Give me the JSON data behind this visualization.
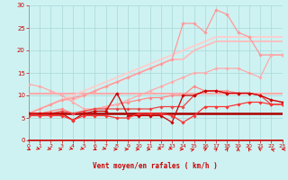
{
  "xlabel": "Vent moyen/en rafales ( km/h )",
  "xlim": [
    0,
    23
  ],
  "ylim": [
    0,
    30
  ],
  "yticks": [
    0,
    5,
    10,
    15,
    20,
    25,
    30
  ],
  "xticks": [
    0,
    1,
    2,
    3,
    4,
    5,
    6,
    7,
    8,
    9,
    10,
    11,
    12,
    13,
    14,
    15,
    16,
    17,
    18,
    19,
    20,
    21,
    22,
    23
  ],
  "bg_color": "#cef2f2",
  "grid_color": "#a8d8d8",
  "lines": [
    {
      "x": [
        0,
        23
      ],
      "y": [
        6.0,
        6.0
      ],
      "color": "#aa0000",
      "lw": 1.8,
      "marker": null,
      "ms": 0
    },
    {
      "x": [
        0,
        23
      ],
      "y": [
        10.5,
        10.5
      ],
      "color": "#ffaaaa",
      "lw": 1.5,
      "marker": null,
      "ms": 0
    },
    {
      "x": [
        0,
        1,
        2,
        3,
        4,
        5,
        6,
        7,
        8,
        9,
        10,
        11,
        12,
        13,
        14,
        15,
        16,
        17,
        18,
        19,
        20,
        21,
        22,
        23
      ],
      "y": [
        6,
        7,
        8,
        9,
        10,
        11,
        12,
        13,
        14,
        15,
        16,
        17,
        18,
        19,
        20,
        21,
        22,
        23,
        23,
        23,
        23,
        23,
        23,
        23
      ],
      "color": "#ffcccc",
      "lw": 1.3,
      "marker": null,
      "ms": 0
    },
    {
      "x": [
        0,
        1,
        2,
        3,
        4,
        5,
        6,
        7,
        8,
        9,
        10,
        11,
        12,
        13,
        14,
        15,
        16,
        17,
        18,
        19,
        20,
        21,
        22,
        23
      ],
      "y": [
        6,
        7,
        8,
        9,
        9,
        10,
        11,
        12,
        13,
        14,
        15,
        16,
        17,
        18,
        18,
        20,
        21,
        22,
        22,
        22,
        22,
        22,
        22,
        22
      ],
      "color": "#ffbbbb",
      "lw": 1.3,
      "marker": null,
      "ms": 0
    },
    {
      "x": [
        0,
        1,
        2,
        3,
        4,
        5,
        6,
        7,
        8,
        9,
        10,
        11,
        12,
        13,
        14,
        15,
        16,
        17,
        18,
        19,
        20,
        21,
        22,
        23
      ],
      "y": [
        6,
        7,
        8,
        9,
        9.5,
        10,
        11,
        12,
        13,
        14,
        15,
        16,
        17,
        18,
        26,
        26,
        24,
        29,
        28,
        24,
        23,
        19,
        19,
        19
      ],
      "color": "#ff9999",
      "lw": 0.9,
      "marker": "D",
      "ms": 1.8
    },
    {
      "x": [
        0,
        1,
        2,
        3,
        4,
        5,
        6,
        7,
        8,
        9,
        10,
        11,
        12,
        13,
        14,
        15,
        16,
        17,
        18,
        19,
        20,
        21,
        22,
        23
      ],
      "y": [
        6,
        6,
        6.5,
        7,
        6,
        6.5,
        7,
        7.5,
        8,
        8.5,
        9,
        9.5,
        9.5,
        10,
        10,
        12,
        11,
        11,
        11,
        10.5,
        10.5,
        10,
        9,
        8.5
      ],
      "color": "#ff8888",
      "lw": 0.9,
      "marker": "D",
      "ms": 1.8
    },
    {
      "x": [
        0,
        1,
        2,
        3,
        4,
        5,
        6,
        7,
        8,
        9,
        10,
        11,
        12,
        13,
        14,
        15,
        16,
        17,
        18,
        19,
        20,
        21,
        22,
        23
      ],
      "y": [
        12.5,
        12,
        11,
        10,
        8.5,
        7,
        7,
        7.5,
        8,
        9,
        10,
        11,
        12,
        13,
        14,
        15,
        15,
        16,
        16,
        16,
        15,
        14,
        19,
        19
      ],
      "color": "#ffaaaa",
      "lw": 0.9,
      "marker": "D",
      "ms": 1.8
    },
    {
      "x": [
        0,
        1,
        2,
        3,
        4,
        5,
        6,
        7,
        8,
        9,
        10,
        11,
        12,
        13,
        14,
        15,
        16,
        17,
        18,
        19,
        20,
        21,
        22,
        23
      ],
      "y": [
        6,
        6,
        6,
        6.5,
        6,
        6.5,
        7,
        7,
        7,
        7,
        7,
        7,
        7.5,
        7.5,
        7.5,
        10,
        11,
        11,
        10.5,
        10.5,
        10.5,
        10,
        8,
        8
      ],
      "color": "#ee4444",
      "lw": 0.9,
      "marker": "D",
      "ms": 1.8
    },
    {
      "x": [
        0,
        1,
        2,
        3,
        4,
        5,
        6,
        7,
        8,
        9,
        10,
        11,
        12,
        13,
        14,
        15,
        16,
        17,
        18,
        19,
        20,
        21,
        22,
        23
      ],
      "y": [
        6,
        6,
        6,
        6,
        4.5,
        6,
        6.5,
        6.5,
        10.5,
        5.5,
        5.5,
        5.5,
        5.5,
        4,
        10,
        10,
        11,
        11,
        10.5,
        10.5,
        10.5,
        10,
        9,
        8.5
      ],
      "color": "#cc0000",
      "lw": 0.9,
      "marker": "D",
      "ms": 1.8
    },
    {
      "x": [
        0,
        1,
        2,
        3,
        4,
        5,
        6,
        7,
        8,
        9,
        10,
        11,
        12,
        13,
        14,
        15,
        16,
        17,
        18,
        19,
        20,
        21,
        22,
        23
      ],
      "y": [
        5.5,
        5.5,
        5.5,
        5.5,
        4.5,
        5.5,
        5.5,
        5.5,
        5,
        5,
        6,
        6,
        6,
        5.5,
        4,
        5.5,
        7.5,
        7.5,
        7.5,
        8,
        8.5,
        8.5,
        8,
        8
      ],
      "color": "#ff3333",
      "lw": 0.9,
      "marker": "D",
      "ms": 1.8
    }
  ],
  "arrow_angles_deg": [
    -135,
    -120,
    -110,
    -90,
    -120,
    -120,
    -135,
    -120,
    -90,
    -90,
    -90,
    -90,
    -120,
    -120,
    -90,
    -60,
    -45,
    -30,
    -20,
    0,
    20,
    40,
    60,
    90
  ],
  "arrow_color": "#dd0000",
  "axis_line_color": "#cc0000",
  "tick_color": "#cc0000",
  "xlabel_color": "#cc0000"
}
